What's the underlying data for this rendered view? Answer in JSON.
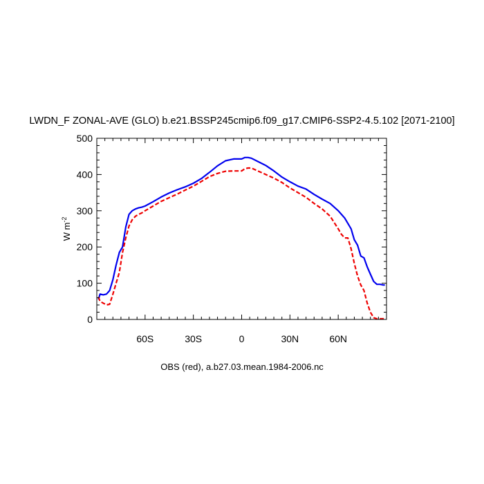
{
  "chart_data": {
    "type": "line",
    "title": "LWDN_F ZONAL-AVE (GLO) b.e21.BSSP245cmip6.f09_g17.CMIP6-SSP2-4.5.102 [2071-2100]",
    "ylabel_main": "W m",
    "ylabel_sup": "-2",
    "caption": "OBS (red), a.b27.03.mean.1984-2006.nc",
    "xlim": [
      -90,
      90
    ],
    "ylim": [
      0,
      500
    ],
    "x_ticks": [
      {
        "value": -60,
        "label": "60S"
      },
      {
        "value": -30,
        "label": "30S"
      },
      {
        "value": 0,
        "label": "0"
      },
      {
        "value": 30,
        "label": "30N"
      },
      {
        "value": 60,
        "label": "60N"
      }
    ],
    "y_ticks": [
      {
        "value": 0,
        "label": "0"
      },
      {
        "value": 100,
        "label": "100"
      },
      {
        "value": 200,
        "label": "200"
      },
      {
        "value": 300,
        "label": "300"
      },
      {
        "value": 400,
        "label": "400"
      },
      {
        "value": 500,
        "label": "500"
      }
    ],
    "series": [
      {
        "color": "#0000ee",
        "dash": "solid",
        "x": [
          -89,
          -88,
          -86,
          -84,
          -82,
          -80,
          -78,
          -76,
          -74,
          -72,
          -70,
          -68,
          -66,
          -64,
          -62,
          -60,
          -55,
          -50,
          -45,
          -40,
          -35,
          -30,
          -25,
          -20,
          -15,
          -10,
          -5,
          0,
          2,
          4,
          6,
          10,
          15,
          20,
          25,
          30,
          35,
          40,
          45,
          50,
          55,
          60,
          62,
          64,
          66,
          68,
          70,
          72,
          74,
          76,
          78,
          80,
          82,
          84,
          86,
          88,
          89
        ],
        "y": [
          55,
          70,
          68,
          70,
          80,
          110,
          150,
          185,
          200,
          255,
          290,
          300,
          305,
          308,
          310,
          313,
          325,
          338,
          349,
          358,
          366,
          376,
          389,
          406,
          424,
          438,
          443,
          443,
          447,
          447,
          445,
          436,
          425,
          410,
          393,
          380,
          368,
          360,
          345,
          332,
          320,
          300,
          290,
          280,
          265,
          250,
          220,
          205,
          175,
          170,
          145,
          125,
          105,
          97,
          97,
          95,
          95
        ]
      },
      {
        "color": "#ee0000",
        "dash": "dashed",
        "x": [
          -89,
          -88,
          -86,
          -84,
          -82,
          -80,
          -78,
          -76,
          -74,
          -72,
          -70,
          -68,
          -66,
          -64,
          -62,
          -60,
          -55,
          -50,
          -45,
          -40,
          -35,
          -30,
          -25,
          -20,
          -15,
          -10,
          -5,
          0,
          2,
          4,
          6,
          10,
          15,
          20,
          25,
          30,
          35,
          40,
          45,
          50,
          55,
          60,
          62,
          64,
          66,
          68,
          70,
          72,
          74,
          76,
          78,
          80,
          82,
          84,
          86,
          88,
          89
        ],
        "y": [
          62,
          50,
          45,
          40,
          42,
          70,
          100,
          130,
          185,
          225,
          258,
          275,
          285,
          290,
          294,
          300,
          313,
          326,
          336,
          346,
          357,
          368,
          381,
          394,
          403,
          409,
          410,
          410,
          416,
          418,
          418,
          410,
          400,
          390,
          378,
          363,
          350,
          337,
          320,
          305,
          285,
          250,
          235,
          225,
          225,
          195,
          155,
          120,
          95,
          80,
          45,
          20,
          5,
          2,
          2,
          2,
          2
        ]
      }
    ]
  }
}
